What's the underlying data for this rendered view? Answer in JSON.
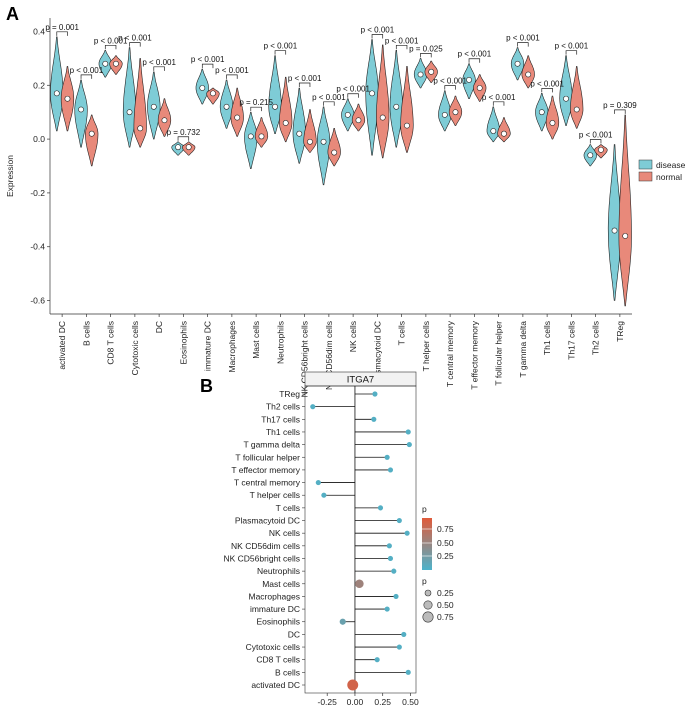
{
  "panel_labels": {
    "a": "A",
    "b": "B"
  },
  "colors": {
    "disease": "#7ECCD6",
    "normal": "#E8897A",
    "lollipop_low": "#4DB3CB",
    "lollipop_high": "#E05A3A",
    "line": "#111111"
  },
  "chart_data": [
    {
      "type": "violin",
      "ylabel": "Expression",
      "ylim": [
        -0.65,
        0.45
      ],
      "yticks": [
        0.4,
        0.2,
        0.0,
        -0.2,
        -0.4,
        -0.6
      ],
      "ytick_labels": [
        "0.4",
        "0.2",
        "0.0",
        "-0.2",
        "-0.4",
        "-0.6"
      ],
      "legend": {
        "position": "right",
        "entries": [
          "disease",
          "normal"
        ]
      },
      "categories": [
        "activated DC",
        "B cells",
        "CD8 T cells",
        "Cytotoxic cells",
        "DC",
        "Eosinophils",
        "immature DC",
        "Macrophages",
        "Mast cells",
        "Neutrophils",
        "NK CD56bright cells",
        "NK CD56dim cells",
        "NK cells",
        "Plasmacytoid DC",
        "T cells",
        "T helper cells",
        "T central memory",
        "T effector memory",
        "T follicular helper",
        "T gamma delta",
        "Th1 cells",
        "Th17 cells",
        "Th2 cells",
        "TReg"
      ],
      "pvalues": [
        "p = 0.001",
        "p < 0.001",
        "p < 0.001",
        "p < 0.001",
        "p < 0.001",
        "p = 0.732",
        "p < 0.001",
        "p < 0.001",
        "p = 0.215",
        "p < 0.001",
        "p < 0.001",
        "p < 0.001",
        "p < 0.001",
        "p < 0.001",
        "p < 0.001",
        "p = 0.025",
        "p < 0.001",
        "p < 0.001",
        "p < 0.001",
        "p < 0.001",
        "p < 0.001",
        "p < 0.001",
        "p < 0.001",
        "p = 0.309"
      ],
      "series": [
        {
          "name": "disease",
          "median": [
            0.17,
            0.11,
            0.28,
            0.1,
            0.12,
            -0.03,
            0.19,
            0.12,
            0.01,
            0.12,
            0.02,
            -0.01,
            0.09,
            0.17,
            0.12,
            0.24,
            0.09,
            0.22,
            0.03,
            0.28,
            0.1,
            0.15,
            -0.06,
            -0.34
          ],
          "min": [
            0.03,
            -0.03,
            0.23,
            -0.03,
            0.0,
            -0.06,
            0.13,
            0.04,
            -0.11,
            0.02,
            -0.09,
            -0.17,
            0.03,
            -0.06,
            -0.03,
            0.19,
            0.03,
            0.15,
            -0.01,
            0.22,
            0.03,
            0.05,
            -0.1,
            -0.6
          ],
          "max": [
            0.38,
            0.22,
            0.33,
            0.34,
            0.25,
            -0.01,
            0.26,
            0.22,
            0.1,
            0.31,
            0.19,
            0.12,
            0.15,
            0.37,
            0.33,
            0.3,
            0.18,
            0.28,
            0.12,
            0.34,
            0.17,
            0.31,
            -0.02,
            -0.02
          ]
        },
        {
          "name": "normal",
          "median": [
            0.15,
            0.02,
            0.28,
            0.04,
            0.07,
            -0.03,
            0.17,
            0.08,
            0.01,
            0.06,
            -0.01,
            -0.05,
            0.07,
            0.08,
            0.05,
            0.25,
            0.1,
            0.19,
            0.02,
            0.24,
            0.06,
            0.11,
            -0.04,
            -0.36
          ],
          "min": [
            0.03,
            -0.1,
            0.24,
            -0.03,
            0.01,
            -0.06,
            0.13,
            0.01,
            -0.03,
            -0.01,
            -0.05,
            -0.1,
            0.03,
            -0.07,
            -0.05,
            0.21,
            0.05,
            0.14,
            -0.01,
            0.19,
            0.0,
            0.04,
            -0.07,
            -0.62
          ],
          "max": [
            0.27,
            0.09,
            0.31,
            0.3,
            0.15,
            -0.01,
            0.19,
            0.19,
            0.08,
            0.23,
            0.11,
            0.04,
            0.13,
            0.35,
            0.27,
            0.29,
            0.16,
            0.24,
            0.08,
            0.31,
            0.16,
            0.27,
            -0.02,
            0.09
          ]
        }
      ]
    },
    {
      "type": "lollipop",
      "title": "ITGA7",
      "xlim": [
        -0.45,
        0.55
      ],
      "xticks": [
        -0.25,
        0.0,
        0.25,
        0.5
      ],
      "xtick_labels": [
        "-0.25",
        "0.00",
        "0.25",
        "0.50"
      ],
      "categories": [
        "TReg",
        "Th2 cells",
        "Th17 cells",
        "Th1 cells",
        "T gamma delta",
        "T follicular helper",
        "T effector memory",
        "T central memory",
        "T helper cells",
        "T cells",
        "Plasmacytoid DC",
        "NK cells",
        "NK CD56dim cells",
        "NK CD56bright cells",
        "Neutrophils",
        "Mast cells",
        "Macrophages",
        "immature DC",
        "Eosinophils",
        "DC",
        "Cytotoxic cells",
        "CD8 T cells",
        "B cells",
        "activated DC"
      ],
      "values": [
        0.18,
        -0.38,
        0.17,
        0.48,
        0.49,
        0.29,
        0.32,
        -0.33,
        -0.28,
        0.23,
        0.4,
        0.47,
        0.31,
        0.32,
        0.35,
        0.04,
        0.37,
        0.29,
        -0.11,
        0.44,
        0.4,
        0.2,
        0.48,
        -0.02
      ],
      "pvalues": [
        0.05,
        0.05,
        0.05,
        0.05,
        0.05,
        0.05,
        0.05,
        0.05,
        0.05,
        0.05,
        0.05,
        0.05,
        0.05,
        0.05,
        0.05,
        0.55,
        0.05,
        0.05,
        0.2,
        0.05,
        0.05,
        0.05,
        0.05,
        0.9
      ],
      "legend_color": {
        "title": "p",
        "labels": [
          "0.75",
          "0.50",
          "0.25"
        ]
      },
      "legend_size": {
        "title": "p",
        "labels": [
          "0.25",
          "0.50",
          "0.75"
        ]
      }
    }
  ]
}
